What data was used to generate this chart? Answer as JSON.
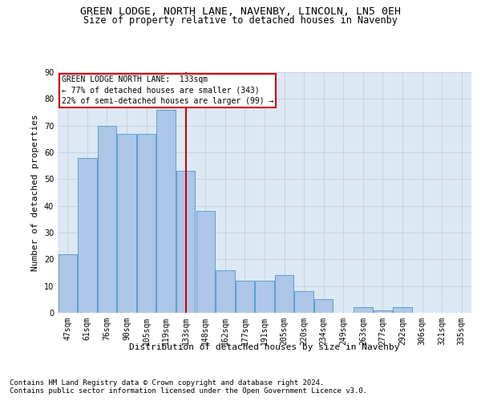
{
  "title1": "GREEN LODGE, NORTH LANE, NAVENBY, LINCOLN, LN5 0EH",
  "title2": "Size of property relative to detached houses in Navenby",
  "xlabel": "Distribution of detached houses by size in Navenby",
  "ylabel": "Number of detached properties",
  "footnote1": "Contains HM Land Registry data © Crown copyright and database right 2024.",
  "footnote2": "Contains public sector information licensed under the Open Government Licence v3.0.",
  "annotation_line1": "GREEN LODGE NORTH LANE:  133sqm",
  "annotation_line2": "← 77% of detached houses are smaller (343)",
  "annotation_line3": "22% of semi-detached houses are larger (99) →",
  "categories": [
    "47sqm",
    "61sqm",
    "76sqm",
    "90sqm",
    "105sqm",
    "119sqm",
    "133sqm",
    "148sqm",
    "162sqm",
    "177sqm",
    "191sqm",
    "205sqm",
    "220sqm",
    "234sqm",
    "249sqm",
    "263sqm",
    "277sqm",
    "292sqm",
    "306sqm",
    "321sqm",
    "335sqm"
  ],
  "values": [
    22,
    58,
    70,
    67,
    67,
    76,
    53,
    38,
    16,
    12,
    12,
    14,
    8,
    5,
    0,
    2,
    1,
    2,
    0,
    0,
    0
  ],
  "bar_color": "#aec6e8",
  "bar_edge_color": "#5a9fd4",
  "highlight_index": 6,
  "red_line_color": "#cc0000",
  "ylim": [
    0,
    90
  ],
  "yticks": [
    0,
    10,
    20,
    30,
    40,
    50,
    60,
    70,
    80,
    90
  ],
  "background_color": "#ffffff",
  "plot_bg_color": "#dce9f5",
  "grid_color": "#c0c8d8",
  "annotation_box_edge": "#cc0000",
  "title_fontsize": 9.5,
  "subtitle_fontsize": 8.5,
  "axis_label_fontsize": 8,
  "tick_fontsize": 7,
  "footnote_fontsize": 6.5,
  "annotation_fontsize": 7
}
